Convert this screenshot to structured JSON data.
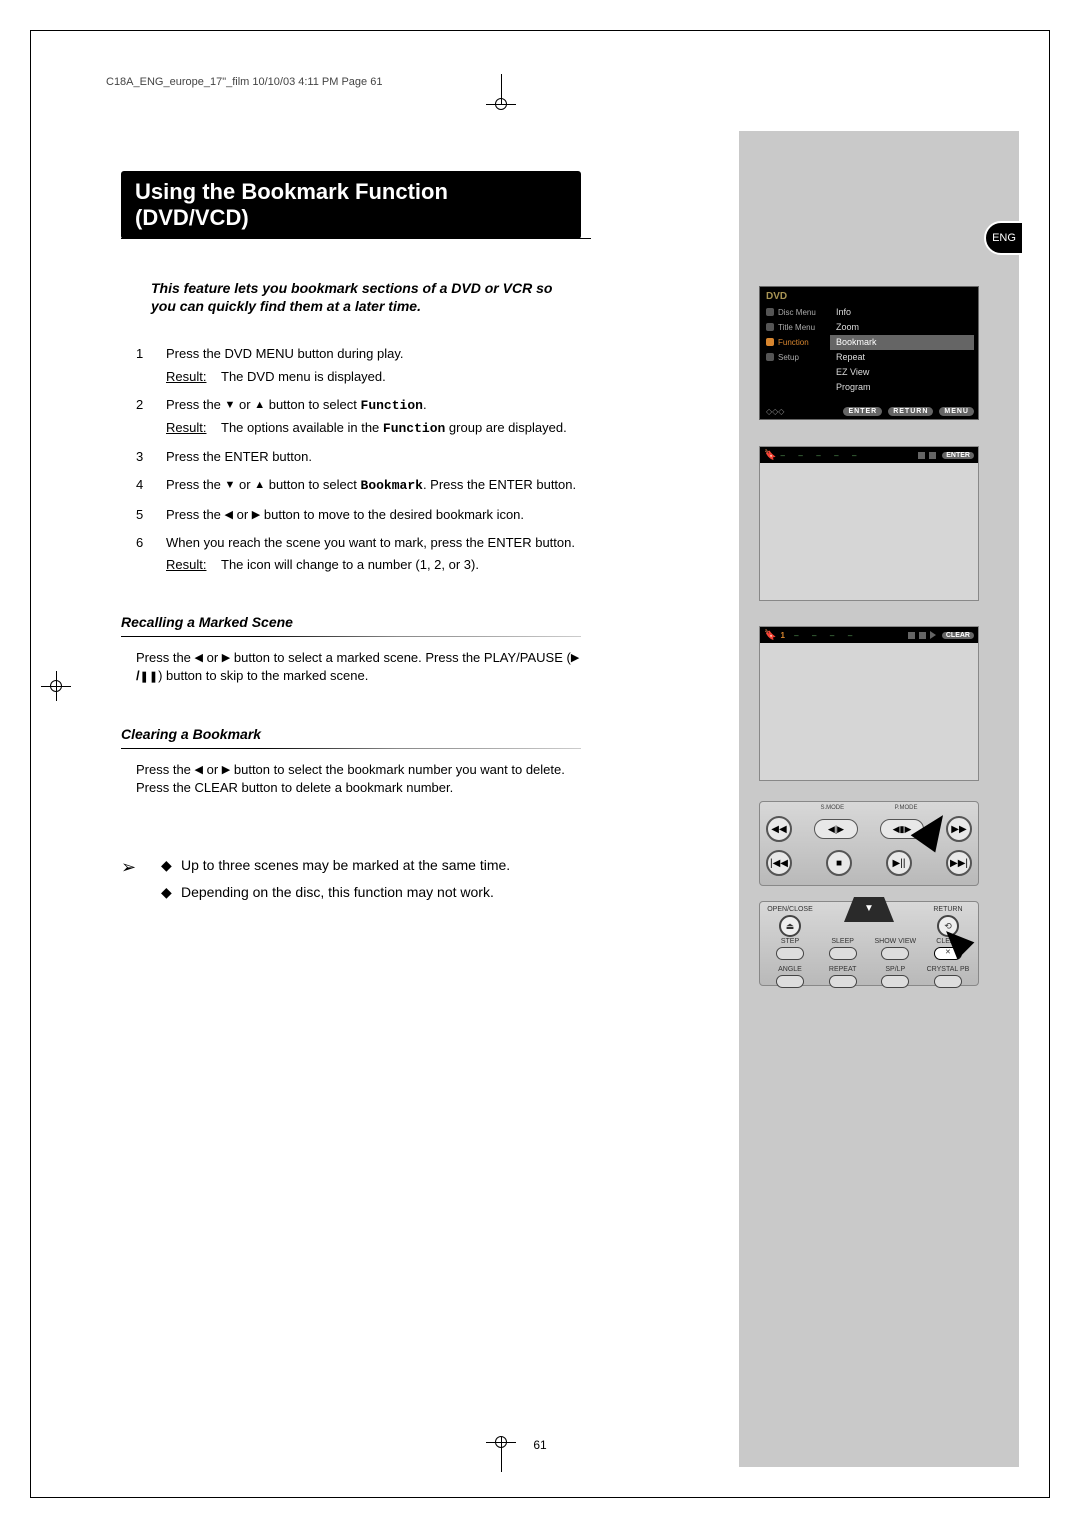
{
  "header_info": "C18A_ENG_europe_17\"_film  10/10/03  4:11 PM  Page 61",
  "title": "Using the Bookmark Function (DVD/VCD)",
  "eng_badge": "ENG",
  "intro": "This feature lets you bookmark sections of a DVD or VCR so you can quickly find them at a later time.",
  "steps": [
    {
      "n": "1",
      "body": "Press the DVD MENU button during play.",
      "result": "The DVD menu is displayed."
    },
    {
      "n": "2",
      "body_pre": "Press the ",
      "body_mid": " button to select ",
      "body_post": ".",
      "keyword": "Function",
      "result": "The options available in the ",
      "result_kw": "Function",
      "result_post": " group are displayed."
    },
    {
      "n": "3",
      "body": "Press the ENTER button."
    },
    {
      "n": "4",
      "body_pre": "Press the ",
      "body_mid": " button to select ",
      "keyword": "Bookmark",
      "body_post": ". Press the ENTER button."
    },
    {
      "n": "5",
      "body_pre": "Press the ",
      "body_post": " button to move to the desired bookmark icon."
    },
    {
      "n": "6",
      "body": "When you reach the scene you want to mark, press the ENTER button.",
      "result": "The icon will change to a number (1, 2, or 3)."
    }
  ],
  "subhead1": "Recalling a Marked Scene",
  "para1_a": "Press the ",
  "para1_b": " button to select a marked scene. Press the PLAY/PAUSE (",
  "para1_c": ") button to skip to the marked scene.",
  "subhead2": "Clearing a Bookmark",
  "para2_a": "Press the ",
  "para2_b": " button to select the bookmark number you want to delete. Press the CLEAR button to delete a bookmark number.",
  "note1": "Up to three scenes may be marked at the same time.",
  "note2": "Depending on the disc, this function may not work.",
  "page_number": "61",
  "result_label": "Result:",
  "osd": {
    "dvd": "DVD",
    "left_items": [
      "Disc Menu",
      "Title Menu",
      "Function",
      "Setup"
    ],
    "left_selected_index": 2,
    "right_items": [
      "Info",
      "Zoom",
      "Bookmark",
      "Repeat",
      "EZ View",
      "Program"
    ],
    "right_selected_index": 2,
    "buttons": [
      "ENTER",
      "RETURN",
      "MENU"
    ]
  },
  "osd2_enter": "ENTER",
  "osd3_num": "1",
  "osd3_clear": "CLEAR",
  "remote_top": [
    "",
    "S.MODE",
    "P.MODE",
    ""
  ],
  "remote2_labels": {
    "open": "OPEN/CLOSE",
    "return": "RETURN",
    "step": "STEP",
    "sleep": "SLEEP",
    "show": "SHOW VIEW",
    "clear": "CLEAR",
    "angle": "ANGLE",
    "repeat": "REPEAT",
    "splp": "SP/LP",
    "crystal": "CRYSTAL PB"
  },
  "colors": {
    "sidebar_bg": "#c9c9c9",
    "osd_bg": "#000000",
    "osd_highlight": "#656565",
    "accent_orange": "#d8862f",
    "accent_green": "#5aa05a"
  }
}
